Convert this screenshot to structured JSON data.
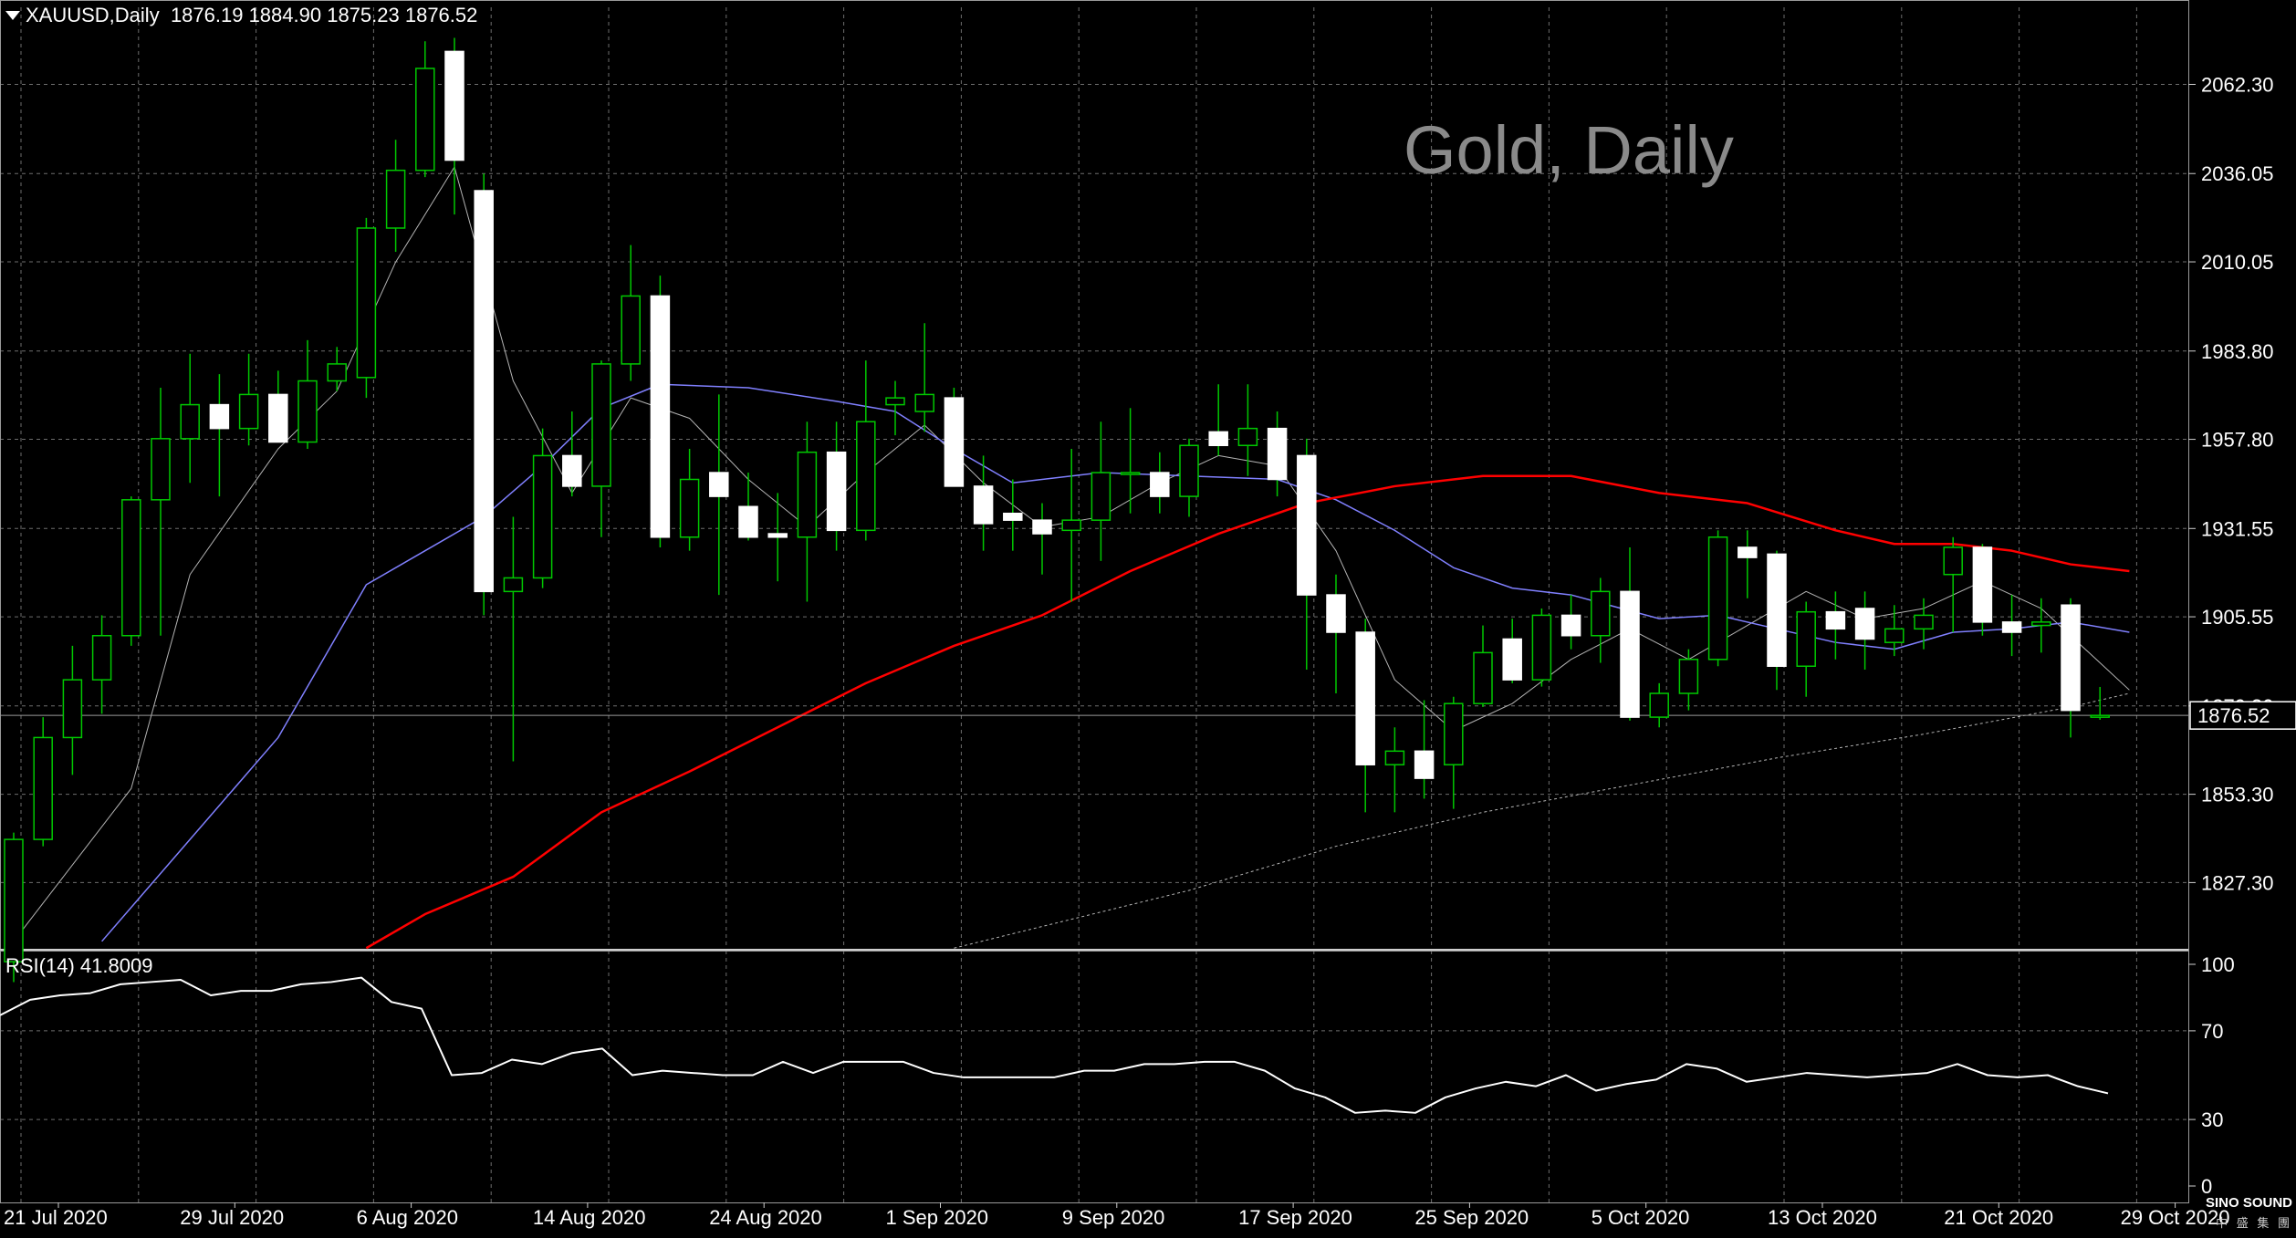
{
  "header": {
    "symbol": "XAUUSD,Daily",
    "ohlc": "1876.19 1884.90 1875.23 1876.52"
  },
  "watermark": "Gold, Daily",
  "current_price_label": "1876.52",
  "rsi_label": "RSI(14) 41.8009",
  "logo": {
    "brand": "SINO SOUND",
    "sub": "中 盛 集 團"
  },
  "colors": {
    "background": "#000000",
    "grid": "#6e6e6e",
    "bull_candle": "#000000",
    "bear_candle": "#ffffff",
    "wick": "#00c800",
    "ma_fast": "#b4b4b4",
    "ma_medium": "#8080ff",
    "ma_slow": "#ff0000",
    "ma_long": "#b4b4b4",
    "rsi_line": "#ffffff"
  },
  "chart_data": [
    {
      "type": "candlestick",
      "title": "Gold, Daily",
      "symbol": "XAUUSD",
      "timeframe": "Daily",
      "grid": true,
      "y_ticks": [
        "1827.30",
        "1853.30",
        "1879.30",
        "1905.55",
        "1931.55",
        "1957.80",
        "1983.80",
        "2010.05",
        "2036.05",
        "2062.30"
      ],
      "x_ticks": [
        "21 Jul 2020",
        "29 Jul 2020",
        "6 Aug 2020",
        "14 Aug 2020",
        "24 Aug 2020",
        "1 Sep 2020",
        "9 Sep 2020",
        "17 Sep 2020",
        "25 Sep 2020",
        "5 Oct 2020",
        "13 Oct 2020",
        "21 Oct 2020",
        "29 Oct 2020"
      ],
      "ylim": [
        1807.8,
        2085.0
      ],
      "current_price": 1876.52,
      "candles": [
        {
          "o": 1804.0,
          "h": 1842.0,
          "l": 1798.0,
          "c": 1840.0
        },
        {
          "o": 1840.0,
          "h": 1876.0,
          "l": 1838.0,
          "c": 1870.0
        },
        {
          "o": 1870.0,
          "h": 1897.0,
          "l": 1859.0,
          "c": 1887.0
        },
        {
          "o": 1887.0,
          "h": 1906.0,
          "l": 1877.0,
          "c": 1900.0
        },
        {
          "o": 1900.0,
          "h": 1941.0,
          "l": 1897.0,
          "c": 1940.0
        },
        {
          "o": 1940.0,
          "h": 1973.0,
          "l": 1900.0,
          "c": 1958.0
        },
        {
          "o": 1958.0,
          "h": 1983.0,
          "l": 1945.0,
          "c": 1968.0
        },
        {
          "o": 1968.0,
          "h": 1977.0,
          "l": 1941.0,
          "c": 1961.0
        },
        {
          "o": 1961.0,
          "h": 1983.0,
          "l": 1956.0,
          "c": 1971.0
        },
        {
          "o": 1971.0,
          "h": 1978.0,
          "l": 1957.0,
          "c": 1957.0
        },
        {
          "o": 1957.0,
          "h": 1987.0,
          "l": 1955.0,
          "c": 1975.0
        },
        {
          "o": 1975.0,
          "h": 1985.0,
          "l": 1972.0,
          "c": 1980.0
        },
        {
          "o": 1976.0,
          "h": 2023.0,
          "l": 1970.0,
          "c": 2020.0
        },
        {
          "o": 2020.0,
          "h": 2046.0,
          "l": 2013.0,
          "c": 2037.0
        },
        {
          "o": 2037.0,
          "h": 2075.0,
          "l": 2035.0,
          "c": 2067.0
        },
        {
          "o": 2072.0,
          "h": 2076.0,
          "l": 2024.0,
          "c": 2040.0
        },
        {
          "o": 2031.0,
          "h": 2036.0,
          "l": 1906.0,
          "c": 1913.0
        },
        {
          "o": 1913.0,
          "h": 1935.0,
          "l": 1863.0,
          "c": 1917.0
        },
        {
          "o": 1917.0,
          "h": 1961.0,
          "l": 1914.0,
          "c": 1953.0
        },
        {
          "o": 1953.0,
          "h": 1966.0,
          "l": 1941.0,
          "c": 1944.0
        },
        {
          "o": 1944.0,
          "h": 1981.0,
          "l": 1929.0,
          "c": 1980.0
        },
        {
          "o": 1980.0,
          "h": 2015.0,
          "l": 1975.0,
          "c": 2000.0
        },
        {
          "o": 2000.0,
          "h": 2006.0,
          "l": 1926.0,
          "c": 1929.0
        },
        {
          "o": 1929.0,
          "h": 1955.0,
          "l": 1925.0,
          "c": 1946.0
        },
        {
          "o": 1948.0,
          "h": 1971.0,
          "l": 1912.0,
          "c": 1941.0
        },
        {
          "o": 1938.0,
          "h": 1948.0,
          "l": 1928.0,
          "c": 1929.0
        },
        {
          "o": 1930.0,
          "h": 1942.0,
          "l": 1916.0,
          "c": 1929.0
        },
        {
          "o": 1929.0,
          "h": 1963.0,
          "l": 1910.0,
          "c": 1954.0
        },
        {
          "o": 1954.0,
          "h": 1963.0,
          "l": 1925.0,
          "c": 1931.0
        },
        {
          "o": 1931.0,
          "h": 1981.0,
          "l": 1928.0,
          "c": 1963.0
        },
        {
          "o": 1968.0,
          "h": 1975.0,
          "l": 1959.0,
          "c": 1970.0
        },
        {
          "o": 1966.0,
          "h": 1992.0,
          "l": 1960.0,
          "c": 1971.0
        },
        {
          "o": 1970.0,
          "h": 1973.0,
          "l": 1944.0,
          "c": 1944.0
        },
        {
          "o": 1944.0,
          "h": 1953.0,
          "l": 1925.0,
          "c": 1933.0
        },
        {
          "o": 1936.0,
          "h": 1946.0,
          "l": 1925.0,
          "c": 1934.0
        },
        {
          "o": 1934.0,
          "h": 1939.0,
          "l": 1918.0,
          "c": 1930.0
        },
        {
          "o": 1931.0,
          "h": 1955.0,
          "l": 1910.0,
          "c": 1934.0
        },
        {
          "o": 1934.0,
          "h": 1963.0,
          "l": 1922.0,
          "c": 1948.0
        },
        {
          "o": 1948.0,
          "h": 1967.0,
          "l": 1936.0,
          "c": 1948.0
        },
        {
          "o": 1948.0,
          "h": 1954.0,
          "l": 1936.0,
          "c": 1941.0
        },
        {
          "o": 1941.0,
          "h": 1958.0,
          "l": 1935.0,
          "c": 1956.0
        },
        {
          "o": 1960.0,
          "h": 1974.0,
          "l": 1953.0,
          "c": 1956.0
        },
        {
          "o": 1956.0,
          "h": 1974.0,
          "l": 1947.0,
          "c": 1961.0
        },
        {
          "o": 1961.0,
          "h": 1966.0,
          "l": 1941.0,
          "c": 1946.0
        },
        {
          "o": 1953.0,
          "h": 1958.0,
          "l": 1890.0,
          "c": 1912.0
        },
        {
          "o": 1912.0,
          "h": 1918.0,
          "l": 1883.0,
          "c": 1901.0
        },
        {
          "o": 1901.0,
          "h": 1905.0,
          "l": 1848.0,
          "c": 1862.0
        },
        {
          "o": 1862.0,
          "h": 1873.0,
          "l": 1848.0,
          "c": 1866.0
        },
        {
          "o": 1866.0,
          "h": 1881.0,
          "l": 1852.0,
          "c": 1858.0
        },
        {
          "o": 1862.0,
          "h": 1882.0,
          "l": 1849.0,
          "c": 1880.0
        },
        {
          "o": 1880.0,
          "h": 1903.0,
          "l": 1879.0,
          "c": 1895.0
        },
        {
          "o": 1899.0,
          "h": 1905.0,
          "l": 1886.0,
          "c": 1887.0
        },
        {
          "o": 1887.0,
          "h": 1908.0,
          "l": 1885.0,
          "c": 1906.0
        },
        {
          "o": 1906.0,
          "h": 1912.0,
          "l": 1896.0,
          "c": 1900.0
        },
        {
          "o": 1900.0,
          "h": 1917.0,
          "l": 1892.0,
          "c": 1913.0
        },
        {
          "o": 1913.0,
          "h": 1926.0,
          "l": 1875.0,
          "c": 1876.0
        },
        {
          "o": 1876.0,
          "h": 1886.0,
          "l": 1873.0,
          "c": 1883.0
        },
        {
          "o": 1883.0,
          "h": 1896.0,
          "l": 1878.0,
          "c": 1893.0
        },
        {
          "o": 1893.0,
          "h": 1931.0,
          "l": 1891.0,
          "c": 1929.0
        },
        {
          "o": 1926.0,
          "h": 1931.0,
          "l": 1911.0,
          "c": 1923.0
        },
        {
          "o": 1924.0,
          "h": 1925.0,
          "l": 1884.0,
          "c": 1891.0
        },
        {
          "o": 1891.0,
          "h": 1910.0,
          "l": 1882.0,
          "c": 1907.0
        },
        {
          "o": 1907.0,
          "h": 1913.0,
          "l": 1893.0,
          "c": 1902.0
        },
        {
          "o": 1908.0,
          "h": 1913.0,
          "l": 1890.0,
          "c": 1899.0
        },
        {
          "o": 1898.0,
          "h": 1909.0,
          "l": 1894.0,
          "c": 1902.0
        },
        {
          "o": 1902.0,
          "h": 1911.0,
          "l": 1896.0,
          "c": 1906.0
        },
        {
          "o": 1918.0,
          "h": 1929.0,
          "l": 1901.0,
          "c": 1926.0
        },
        {
          "o": 1926.0,
          "h": 1927.0,
          "l": 1900.0,
          "c": 1904.0
        },
        {
          "o": 1904.0,
          "h": 1912.0,
          "l": 1894.0,
          "c": 1901.0
        },
        {
          "o": 1903.0,
          "h": 1911.0,
          "l": 1895.0,
          "c": 1904.0
        },
        {
          "o": 1909.0,
          "h": 1911.0,
          "l": 1870.0,
          "c": 1878.0
        },
        {
          "o": 1876.19,
          "h": 1884.9,
          "l": 1875.23,
          "c": 1876.52
        }
      ],
      "indicators": [
        {
          "name": "MA fast",
          "color": "#b4b4b4",
          "width": 1,
          "values": [
            [
              0,
              1810.0
            ],
            [
              4,
              1855.0
            ],
            [
              6,
              1918.0
            ],
            [
              9,
              1955.0
            ],
            [
              11,
              1972.0
            ],
            [
              13,
              2010.0
            ],
            [
              15,
              2038.0
            ],
            [
              17,
              1975.0
            ],
            [
              19,
              1942.0
            ],
            [
              21,
              1970.0
            ],
            [
              23,
              1964.0
            ],
            [
              25,
              1946.0
            ],
            [
              27,
              1932.0
            ],
            [
              29,
              1948.0
            ],
            [
              31,
              1962.0
            ],
            [
              33,
              1945.0
            ],
            [
              35,
              1932.0
            ],
            [
              37,
              1935.0
            ],
            [
              39,
              1945.0
            ],
            [
              41,
              1953.0
            ],
            [
              43,
              1950.0
            ],
            [
              45,
              1925.0
            ],
            [
              47,
              1887.0
            ],
            [
              49,
              1872.0
            ],
            [
              51,
              1880.0
            ],
            [
              53,
              1893.0
            ],
            [
              55,
              1902.0
            ],
            [
              57,
              1893.0
            ],
            [
              59,
              1903.0
            ],
            [
              61,
              1913.0
            ],
            [
              63,
              1905.0
            ],
            [
              65,
              1908.0
            ],
            [
              67,
              1916.0
            ],
            [
              69,
              1908.0
            ],
            [
              71,
              1892.0
            ],
            [
              72,
              1884.0
            ]
          ]
        },
        {
          "name": "MA medium",
          "color": "#8080ff",
          "width": 1.5,
          "values": [
            [
              3,
              1810.0
            ],
            [
              6,
              1840.0
            ],
            [
              9,
              1870.0
            ],
            [
              12,
              1915.0
            ],
            [
              14,
              1925.0
            ],
            [
              16,
              1935.0
            ],
            [
              18,
              1950.0
            ],
            [
              20,
              1967.0
            ],
            [
              22,
              1974.0
            ],
            [
              25,
              1973.0
            ],
            [
              28,
              1969.0
            ],
            [
              30,
              1966.0
            ],
            [
              32,
              1955.0
            ],
            [
              34,
              1945.0
            ],
            [
              37,
              1948.0
            ],
            [
              40,
              1947.0
            ],
            [
              43,
              1946.0
            ],
            [
              45,
              1940.0
            ],
            [
              47,
              1931.0
            ],
            [
              49,
              1920.0
            ],
            [
              51,
              1914.0
            ],
            [
              53,
              1912.0
            ],
            [
              56,
              1905.0
            ],
            [
              58,
              1906.0
            ],
            [
              60,
              1902.0
            ],
            [
              62,
              1898.0
            ],
            [
              64,
              1896.0
            ],
            [
              66,
              1901.0
            ],
            [
              68,
              1902.0
            ],
            [
              70,
              1904.0
            ],
            [
              72,
              1901.0
            ]
          ]
        },
        {
          "name": "MA slow",
          "color": "#ff0000",
          "width": 2.5,
          "values": [
            [
              12,
              1808.0
            ],
            [
              14,
              1818.0
            ],
            [
              17,
              1829.0
            ],
            [
              20,
              1848.0
            ],
            [
              23,
              1860.0
            ],
            [
              26,
              1873.0
            ],
            [
              29,
              1886.0
            ],
            [
              32,
              1897.0
            ],
            [
              35,
              1906.0
            ],
            [
              38,
              1919.0
            ],
            [
              41,
              1930.0
            ],
            [
              44,
              1939.0
            ],
            [
              47,
              1944.0
            ],
            [
              50,
              1947.0
            ],
            [
              53,
              1947.0
            ],
            [
              56,
              1942.0
            ],
            [
              59,
              1939.0
            ],
            [
              62,
              1931.0
            ],
            [
              64,
              1927.0
            ],
            [
              66,
              1927.0
            ],
            [
              68,
              1925.0
            ],
            [
              70,
              1921.0
            ],
            [
              72,
              1919.0
            ]
          ]
        },
        {
          "name": "MA long",
          "color": "#b4b4b4",
          "width": 1,
          "dashed": true,
          "values": [
            [
              32,
              1808.0
            ],
            [
              40,
              1825.0
            ],
            [
              45,
              1838.0
            ],
            [
              50,
              1848.0
            ],
            [
              55,
              1856.0
            ],
            [
              60,
              1864.0
            ],
            [
              65,
              1871.0
            ],
            [
              70,
              1879.0
            ],
            [
              72,
              1883.0
            ]
          ]
        }
      ]
    },
    {
      "type": "line",
      "title": "RSI(14) 41.8009",
      "ylim": [
        0,
        100
      ],
      "y_ticks": [
        "0",
        "30",
        "70",
        "100"
      ],
      "grid": true,
      "series": [
        {
          "name": "RSI(14)",
          "values": [
            77,
            84,
            86,
            87,
            91,
            92,
            93,
            86,
            88,
            88,
            91,
            92,
            94,
            83,
            80,
            50,
            51,
            57,
            55,
            60,
            62,
            50,
            52,
            51,
            50,
            50,
            56,
            51,
            56,
            56,
            56,
            51,
            49,
            49,
            49,
            49,
            52,
            52,
            55,
            55,
            56,
            56,
            52,
            44,
            40,
            33,
            34,
            33,
            40,
            44,
            47,
            45,
            50,
            43,
            46,
            48,
            55,
            53,
            47,
            49,
            51,
            50,
            49,
            50,
            51,
            55,
            50,
            49,
            50,
            45,
            41.8
          ]
        }
      ]
    }
  ]
}
